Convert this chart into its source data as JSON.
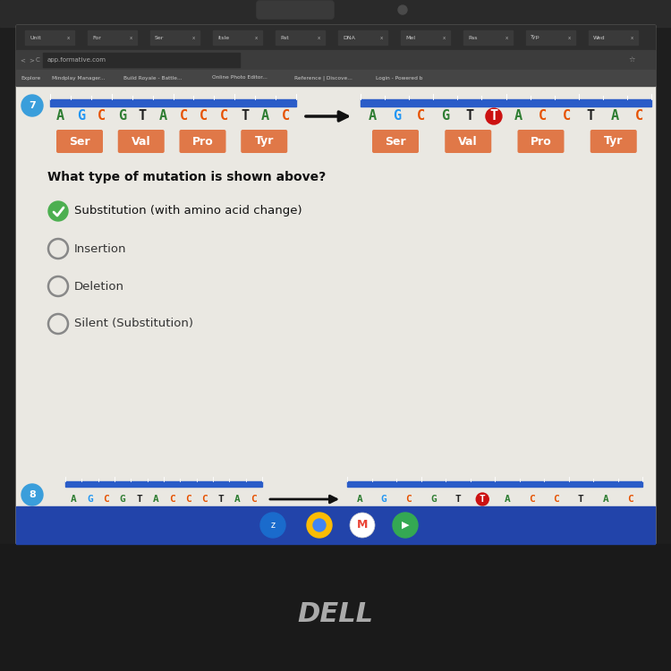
{
  "laptop_body_color": "#1a1a1a",
  "laptop_bezel_color": "#2a2a2a",
  "screen_bg": "#d8d4ce",
  "content_bg": "#e8e4de",
  "tab_bar_color": "#2d2d2d",
  "url_bar_color": "#3a3a3a",
  "bookmarks_bar_color": "#404040",
  "white_content_bg": "#eae8e2",
  "blue_bar_color": "#2a5cc8",
  "question_number_color": "#3a9edb",
  "original_seq": [
    "A",
    "G",
    "C",
    "G",
    "T",
    "A",
    "C",
    "C",
    "C",
    "T",
    "A",
    "C"
  ],
  "mutated_seq": [
    "A",
    "G",
    "C",
    "G",
    "T",
    "T",
    "A",
    "C",
    "C",
    "T",
    "A",
    "C"
  ],
  "original_colors": [
    "#2e7d32",
    "#2196f3",
    "#e65100",
    "#2e7d32",
    "#222222",
    "#2e7d32",
    "#e65100",
    "#e65100",
    "#e65100",
    "#222222",
    "#2e7d32",
    "#e65100"
  ],
  "mutated_colors": [
    "#2e7d32",
    "#2196f3",
    "#e65100",
    "#2e7d32",
    "#222222",
    "#cc1111",
    "#2e7d32",
    "#e65100",
    "#e65100",
    "#222222",
    "#2e7d32",
    "#e65100"
  ],
  "mut_highlight_idx": 5,
  "mut_highlight_bg": "#cc1111",
  "amino_orig": [
    "Ser",
    "Val",
    "Pro",
    "Tyr"
  ],
  "amino_mut": [
    "Ser",
    "Val",
    "Pro",
    "Tyr"
  ],
  "amino_bg": "#e07848",
  "amino_text": "#ffffff",
  "question_text": "What type of mutation is shown above?",
  "options": [
    "Substitution (with amino acid change)",
    "Insertion",
    "Deletion",
    "Silent (Substitution)"
  ],
  "selected_option": 0,
  "selected_color": "#4caf50",
  "unselected_color": "#888888",
  "dell_text_color": "#aaaaaa",
  "taskbar_color": "#2244aa",
  "taskbar_bottom_color": "#1a3388",
  "screen_frame_color": "#1c1c1c"
}
